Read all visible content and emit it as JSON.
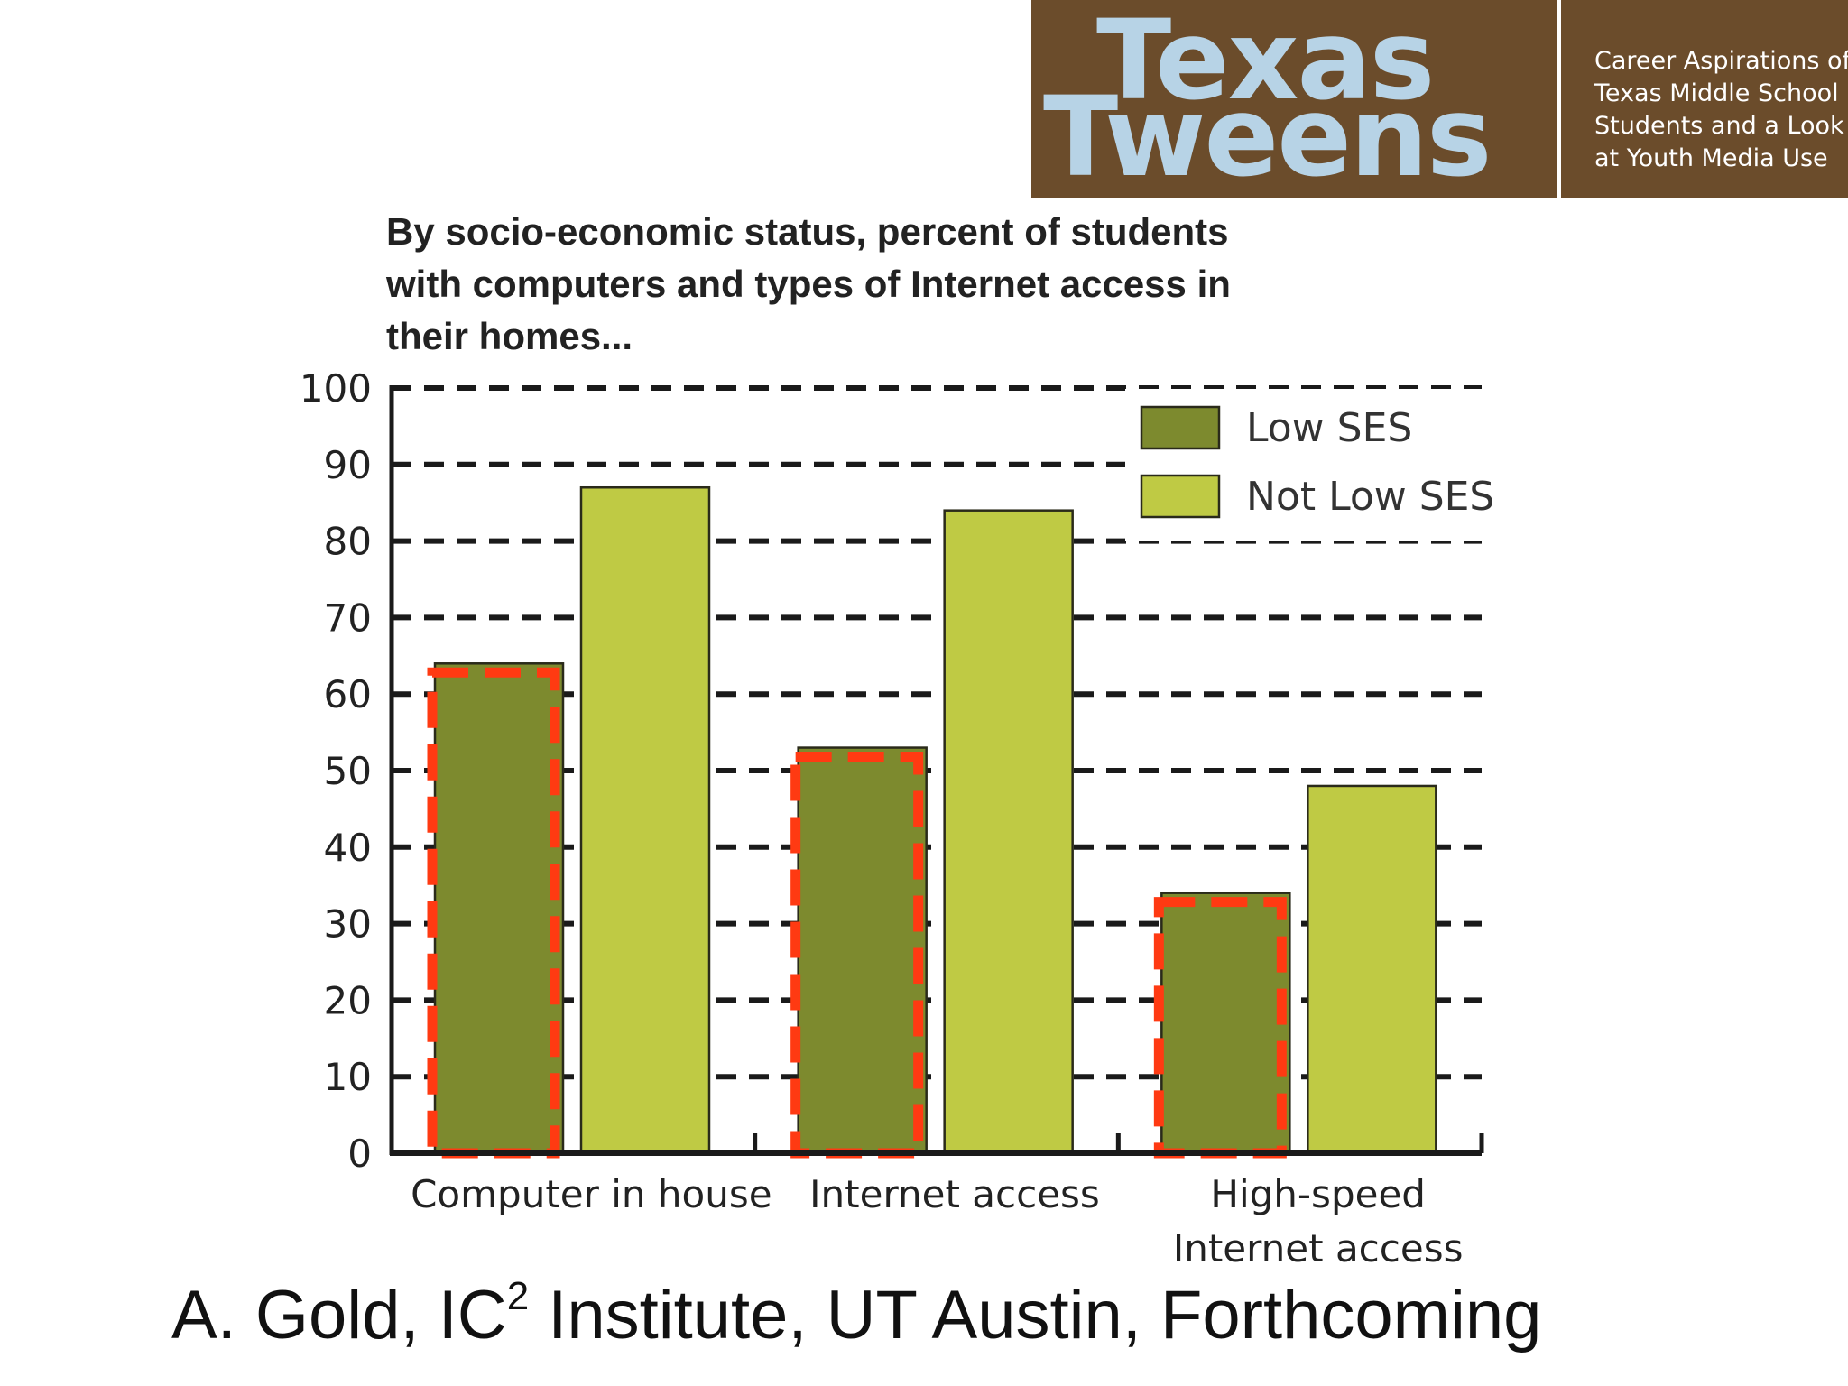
{
  "header": {
    "logo_line_1": "Texas",
    "logo_line_2": "Tweens",
    "tagline": [
      "Career Aspirations of",
      "Texas Middle School",
      "Students and a Look",
      "at Youth Media Use"
    ],
    "background_color": "#6b4c2b",
    "logo_color": "#b7d3e6"
  },
  "chart_data": {
    "type": "bar",
    "title_lines": [
      "By socio-economic status, percent of students",
      "with computers and types of Internet access in",
      "their homes..."
    ],
    "categories": [
      [
        "Computer in house"
      ],
      [
        "Internet access"
      ],
      [
        "High-speed",
        "Internet access"
      ]
    ],
    "series": [
      {
        "name": "Low SES",
        "color": "#7d8a2e",
        "values": [
          64,
          53,
          34
        ]
      },
      {
        "name": "Not Low SES",
        "color": "#bfca44",
        "values": [
          87,
          84,
          48
        ]
      }
    ],
    "ylim": [
      0,
      100
    ],
    "yticks": [
      0,
      10,
      20,
      30,
      40,
      50,
      60,
      70,
      80,
      90,
      100
    ],
    "grid": "dashed horizontal",
    "legend_position": "top-right",
    "highlight": {
      "series": "Low SES",
      "style": "dashed red outline",
      "color": "#ff3a12"
    }
  },
  "footer": {
    "credit_prefix": "A. Gold, IC",
    "credit_superscript": "2",
    "credit_suffix": " Institute, UT Austin, Forthcoming"
  }
}
